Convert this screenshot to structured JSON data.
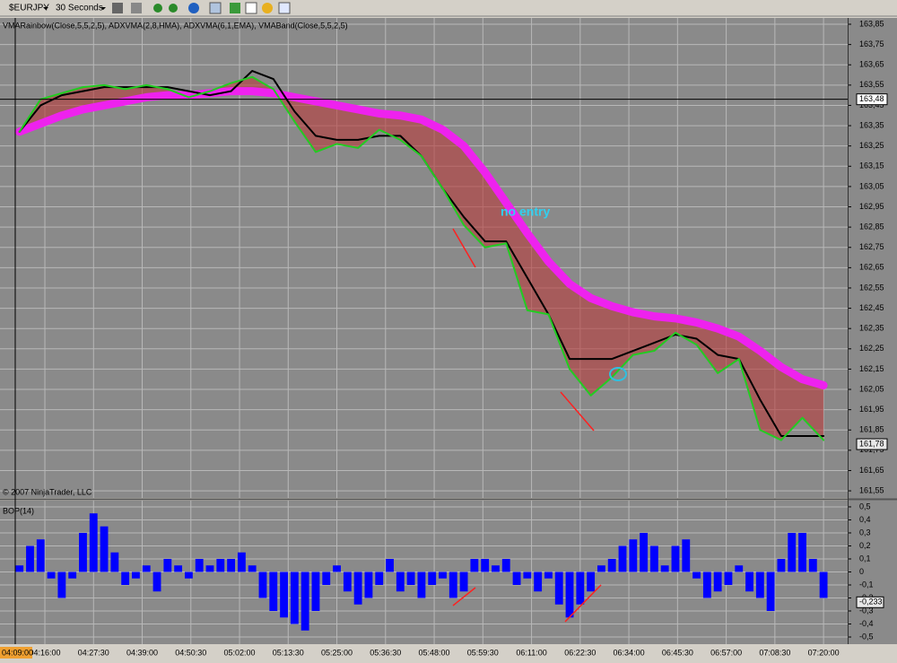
{
  "toolbar": {
    "symbol": "$EURJPY",
    "interval": "30 Seconds"
  },
  "chart_data": [
    {
      "type": "line",
      "title": "VMARainbow(Close,5,5,2,5), ADXVMA(2,8,HMA), ADXVMA(6,1,EMA), VMABand(Close,5,5,2,5)",
      "annotation": "no entry",
      "copyright": "© 2007 NinjaTrader, LLC",
      "x": [
        "04:10:00",
        "04:15:00",
        "04:20:00",
        "04:25:00",
        "04:30:00",
        "04:35:00",
        "04:40:00",
        "04:45:00",
        "04:50:00",
        "04:55:00",
        "05:00:00",
        "05:05:00",
        "05:10:00",
        "05:15:00",
        "05:20:00",
        "05:25:00",
        "05:30:00",
        "05:35:00",
        "05:40:00",
        "05:45:00",
        "05:50:00",
        "05:55:00",
        "06:00:00",
        "06:05:00",
        "06:10:00",
        "06:15:00",
        "06:20:00",
        "06:25:00",
        "06:30:00",
        "06:35:00",
        "06:40:00",
        "06:45:00",
        "06:50:00",
        "06:55:00",
        "07:00:00",
        "07:05:00",
        "07:10:00",
        "07:15:00",
        "07:20:00"
      ],
      "series": [
        {
          "color": "#22cc22",
          "values": [
            163.32,
            163.48,
            163.51,
            163.54,
            163.55,
            163.53,
            163.55,
            163.53,
            163.49,
            163.52,
            163.56,
            163.59,
            163.53,
            163.37,
            163.22,
            163.26,
            163.24,
            163.33,
            163.28,
            163.2,
            163.04,
            162.86,
            162.75,
            162.77,
            162.44,
            162.42,
            162.15,
            162.02,
            162.11,
            162.22,
            162.24,
            162.33,
            162.27,
            162.13,
            162.2,
            161.85,
            161.8,
            161.91,
            161.8
          ]
        },
        {
          "color": "#000000",
          "values": [
            163.32,
            163.45,
            163.5,
            163.52,
            163.54,
            163.54,
            163.54,
            163.54,
            163.52,
            163.5,
            163.52,
            163.62,
            163.58,
            163.42,
            163.3,
            163.28,
            163.28,
            163.3,
            163.3,
            163.2,
            163.04,
            162.9,
            162.78,
            162.78,
            162.6,
            162.42,
            162.2,
            162.2,
            162.2,
            162.24,
            162.28,
            162.32,
            162.3,
            162.22,
            162.2,
            162.0,
            161.82,
            161.82,
            161.82
          ]
        },
        {
          "color": "#ee22ee",
          "values": [
            163.32,
            163.36,
            163.4,
            163.43,
            163.45,
            163.47,
            163.49,
            163.5,
            163.5,
            163.51,
            163.52,
            163.52,
            163.51,
            163.49,
            163.47,
            163.45,
            163.43,
            163.41,
            163.4,
            163.38,
            163.33,
            163.25,
            163.12,
            162.97,
            162.82,
            162.68,
            162.57,
            162.5,
            162.46,
            162.43,
            162.41,
            162.4,
            162.38,
            162.35,
            162.31,
            162.24,
            162.16,
            162.1,
            162.07
          ]
        }
      ],
      "xlim": [
        "04:05:24",
        "07:25:42"
      ],
      "ylim": [
        161.515,
        163.881
      ],
      "yticks": [
        {
          "value": 161.55,
          "label": "161,55"
        },
        {
          "value": 161.65,
          "label": "161,65"
        },
        {
          "value": 161.75,
          "label": "161,75"
        },
        {
          "value": 161.85,
          "label": "161,85"
        },
        {
          "value": 161.95,
          "label": "161,95"
        },
        {
          "value": 162.05,
          "label": "162,05"
        },
        {
          "value": 162.15,
          "label": "162,15"
        },
        {
          "value": 162.25,
          "label": "162,25"
        },
        {
          "value": 162.35,
          "label": "162,35"
        },
        {
          "value": 162.45,
          "label": "162,45"
        },
        {
          "value": 162.55,
          "label": "162,55"
        },
        {
          "value": 162.65,
          "label": "162,65"
        },
        {
          "value": 162.75,
          "label": "162,75"
        },
        {
          "value": 162.85,
          "label": "162,85"
        },
        {
          "value": 162.95,
          "label": "162,95"
        },
        {
          "value": 163.05,
          "label": "163,05"
        },
        {
          "value": 163.15,
          "label": "163,15"
        },
        {
          "value": 163.25,
          "label": "163,25"
        },
        {
          "value": 163.35,
          "label": "163,35"
        },
        {
          "value": 163.45,
          "label": "163,45"
        },
        {
          "value": 163.55,
          "label": "163,55"
        },
        {
          "value": 163.65,
          "label": "163,65"
        },
        {
          "value": 163.75,
          "label": "163,75"
        },
        {
          "value": 163.85,
          "label": "163,85"
        }
      ],
      "cursor_y": {
        "value": 163.48,
        "label": "163,48"
      },
      "last": {
        "value": 161.78,
        "label": "161,78"
      },
      "grid": true
    },
    {
      "type": "bar",
      "title": "BOP(14)",
      "color": "#0000ff",
      "x": [
        "04:10:00",
        "04:12:30",
        "04:15:00",
        "04:17:30",
        "04:20:00",
        "04:22:30",
        "04:25:00",
        "04:27:30",
        "04:30:00",
        "04:32:30",
        "04:35:00",
        "04:37:30",
        "04:40:00",
        "04:42:30",
        "04:45:00",
        "04:47:30",
        "04:50:00",
        "04:52:30",
        "04:55:00",
        "04:57:30",
        "05:00:00",
        "05:02:30",
        "05:05:00",
        "05:07:30",
        "05:10:00",
        "05:12:30",
        "05:15:00",
        "05:17:30",
        "05:20:00",
        "05:22:30",
        "05:25:00",
        "05:27:30",
        "05:30:00",
        "05:32:30",
        "05:35:00",
        "05:37:30",
        "05:40:00",
        "05:42:30",
        "05:45:00",
        "05:47:30",
        "05:50:00",
        "05:52:30",
        "05:55:00",
        "05:57:30",
        "06:00:00",
        "06:02:30",
        "06:05:00",
        "06:07:30",
        "06:10:00",
        "06:12:30",
        "06:15:00",
        "06:17:30",
        "06:20:00",
        "06:22:30",
        "06:25:00",
        "06:27:30",
        "06:30:00",
        "06:32:30",
        "06:35:00",
        "06:37:30",
        "06:40:00",
        "06:42:30",
        "06:45:00",
        "06:47:30",
        "06:50:00",
        "06:52:30",
        "06:55:00",
        "06:57:30",
        "07:00:00",
        "07:02:30",
        "07:05:00",
        "07:07:30",
        "07:10:00",
        "07:12:30",
        "07:15:00",
        "07:17:30",
        "07:20:00"
      ],
      "values": [
        0.05,
        0.2,
        0.25,
        -0.05,
        -0.2,
        -0.05,
        0.3,
        0.45,
        0.35,
        0.15,
        -0.1,
        -0.05,
        0.05,
        -0.15,
        0.1,
        0.05,
        -0.05,
        0.1,
        0.05,
        0.1,
        0.1,
        0.15,
        0.05,
        -0.2,
        -0.3,
        -0.35,
        -0.4,
        -0.45,
        -0.3,
        -0.1,
        0.05,
        -0.15,
        -0.25,
        -0.2,
        -0.1,
        0.1,
        -0.15,
        -0.1,
        -0.2,
        -0.1,
        -0.05,
        -0.2,
        -0.15,
        0.1,
        0.1,
        0.05,
        0.1,
        -0.1,
        -0.05,
        -0.15,
        -0.05,
        -0.25,
        -0.35,
        -0.25,
        -0.15,
        0.05,
        0.1,
        0.2,
        0.25,
        0.3,
        0.2,
        0.05,
        0.2,
        0.25,
        -0.05,
        -0.2,
        -0.15,
        -0.1,
        0.05,
        -0.15,
        -0.2,
        -0.3,
        0.1,
        0.3,
        0.3,
        0.1,
        -0.2
      ],
      "xlim": [
        "04:05:24",
        "07:25:42"
      ],
      "xticks": [
        "04:16:00",
        "04:27:30",
        "04:39:00",
        "04:50:30",
        "05:02:00",
        "05:13:30",
        "05:25:00",
        "05:36:30",
        "05:48:00",
        "05:59:30",
        "06:11:00",
        "06:22:30",
        "06:34:00",
        "06:45:30",
        "06:57:00",
        "07:08:30",
        "07:20:00"
      ],
      "cursor_x": "04:09:00",
      "ylim": [
        -0.555,
        0.548
      ],
      "yticks": [
        {
          "value": 0.5,
          "label": "0,5"
        },
        {
          "value": 0.4,
          "label": "0,4"
        },
        {
          "value": 0.3,
          "label": "0,3"
        },
        {
          "value": 0.2,
          "label": "0,2"
        },
        {
          "value": 0.1,
          "label": "0,1"
        },
        0,
        {
          "value": -0.1,
          "label": "-0,1"
        },
        {
          "value": -0.2,
          "label": "-0,2"
        },
        {
          "value": -0.3,
          "label": "-0,3"
        },
        {
          "value": -0.4,
          "label": "-0,4"
        },
        {
          "value": -0.5,
          "label": "-0,5"
        }
      ],
      "last": {
        "value": -0.233,
        "label": "-0,233"
      },
      "grid": true
    }
  ]
}
